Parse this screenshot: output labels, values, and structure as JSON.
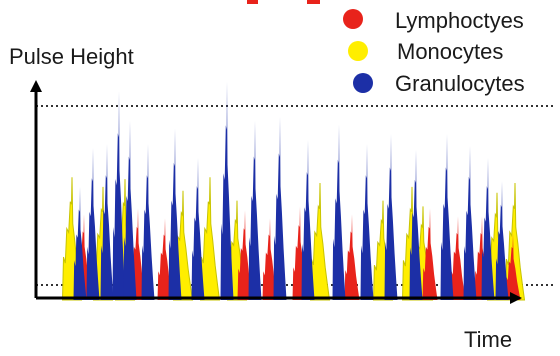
{
  "chart_data": {
    "type": "area",
    "title": "",
    "xlabel": "Time",
    "ylabel": "Pulse Height",
    "grid": false,
    "reference_lines": "dotted upper and lower threshold lines",
    "legend_position": "top-right",
    "legend": [
      {
        "label": "Lymphoctyes",
        "color": "#e8231b"
      },
      {
        "label": "Monocytes",
        "color": "#ffee00"
      },
      {
        "label": "Granulocytes",
        "color": "#1c2fa6"
      }
    ],
    "series": [
      {
        "name": "Lymphoctyes",
        "color": "#e8231b",
        "peaks": [
          [
            84,
            0.44
          ],
          [
            138,
            0.47
          ],
          [
            165,
            0.42
          ],
          [
            245,
            0.46
          ],
          [
            270,
            0.42
          ],
          [
            300,
            0.48
          ],
          [
            352,
            0.44
          ],
          [
            430,
            0.47
          ],
          [
            458,
            0.43
          ],
          [
            482,
            0.43
          ],
          [
            513,
            0.34
          ]
        ]
      },
      {
        "name": "Monocytes",
        "color": "#ffee00",
        "peaks": [
          [
            72,
            0.63
          ],
          [
            103,
            0.58
          ],
          [
            125,
            0.62
          ],
          [
            183,
            0.56
          ],
          [
            210,
            0.63
          ],
          [
            237,
            0.51
          ],
          [
            320,
            0.6
          ],
          [
            383,
            0.51
          ],
          [
            412,
            0.58
          ],
          [
            423,
            0.48
          ],
          [
            497,
            0.55
          ],
          [
            515,
            0.6
          ]
        ]
      },
      {
        "name": "Granulocytes",
        "color": "#1c2fa6",
        "peaks": [
          [
            80,
            0.58
          ],
          [
            93,
            0.78
          ],
          [
            107,
            0.8
          ],
          [
            119,
            1.07
          ],
          [
            130,
            0.92
          ],
          [
            148,
            0.8
          ],
          [
            175,
            0.88
          ],
          [
            198,
            0.73
          ],
          [
            227,
            1.12
          ],
          [
            255,
            0.92
          ],
          [
            280,
            0.94
          ],
          [
            308,
            0.82
          ],
          [
            339,
            0.9
          ],
          [
            367,
            0.8
          ],
          [
            391,
            0.85
          ],
          [
            416,
            0.77
          ],
          [
            447,
            0.85
          ],
          [
            470,
            0.79
          ],
          [
            488,
            0.73
          ],
          [
            502,
            0.61
          ]
        ]
      }
    ]
  },
  "legend_items": [
    "Lymphoctyes",
    "Monocytes",
    "Granulocytes"
  ],
  "labels": {
    "pulse_height": "Pulse Height",
    "time": "Time"
  }
}
